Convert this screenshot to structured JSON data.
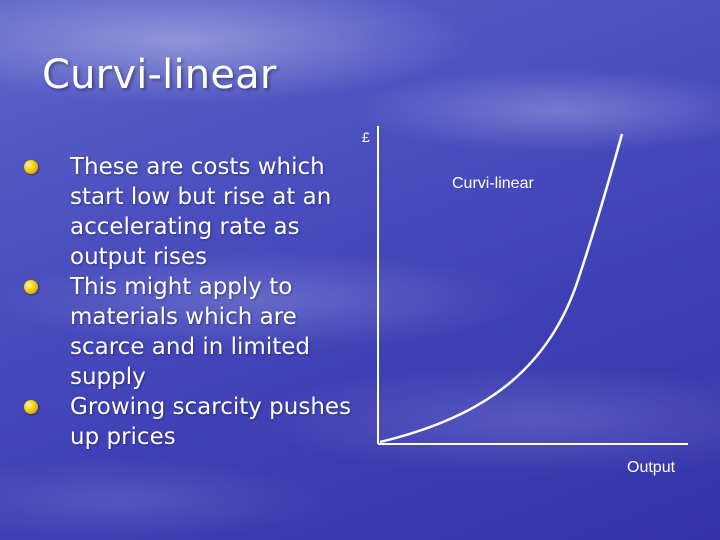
{
  "slide": {
    "title": "Curvi-linear",
    "bullets": [
      "These are costs which start low but rise at an accelerating rate as output rises",
      "This might apply to materials which are scarce and in limited supply",
      "Growing scarcity pushes up prices"
    ]
  },
  "diagram": {
    "y_axis_label": "£",
    "x_axis_label": "Output",
    "curve_label": "Curvi-linear",
    "colors": {
      "axis": "#ffffff",
      "curve": "#ffffff",
      "bullet": "#f2d000"
    }
  }
}
